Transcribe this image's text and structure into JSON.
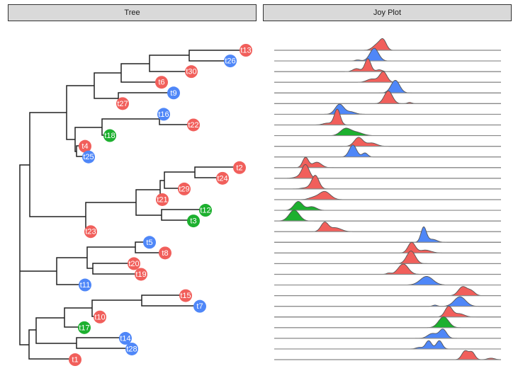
{
  "chart_data": [
    {
      "type": "tree",
      "title": "Tree",
      "tips": [
        {
          "label": "t13",
          "group": "red"
        },
        {
          "label": "t26",
          "group": "blue"
        },
        {
          "label": "t30",
          "group": "red"
        },
        {
          "label": "t6",
          "group": "red"
        },
        {
          "label": "t9",
          "group": "blue"
        },
        {
          "label": "t27",
          "group": "red"
        },
        {
          "label": "t16",
          "group": "blue"
        },
        {
          "label": "t22",
          "group": "red"
        },
        {
          "label": "t18",
          "group": "green"
        },
        {
          "label": "t4",
          "group": "red"
        },
        {
          "label": "t25",
          "group": "blue"
        },
        {
          "label": "t2",
          "group": "red"
        },
        {
          "label": "t24",
          "group": "red"
        },
        {
          "label": "t29",
          "group": "red"
        },
        {
          "label": "t21",
          "group": "red"
        },
        {
          "label": "t12",
          "group": "green"
        },
        {
          "label": "t3",
          "group": "green"
        },
        {
          "label": "t23",
          "group": "red"
        },
        {
          "label": "t5",
          "group": "blue"
        },
        {
          "label": "t8",
          "group": "red"
        },
        {
          "label": "t20",
          "group": "red"
        },
        {
          "label": "t19",
          "group": "red"
        },
        {
          "label": "t11",
          "group": "blue"
        },
        {
          "label": "t15",
          "group": "red"
        },
        {
          "label": "t7",
          "group": "blue"
        },
        {
          "label": "t10",
          "group": "red"
        },
        {
          "label": "t17",
          "group": "green"
        },
        {
          "label": "t14",
          "group": "blue"
        },
        {
          "label": "t28",
          "group": "blue"
        },
        {
          "label": "t1",
          "group": "red"
        }
      ]
    },
    {
      "type": "ridgeline",
      "title": "Joy Plot",
      "xlim": [
        0,
        100
      ],
      "note": "each ridge is a mixture of [center, sd, weight] components in data units",
      "ridges": [
        {
          "tip": "t13",
          "group": "red",
          "components": [
            [
              45.6,
              2.0,
              0.5
            ],
            [
              48.1,
              1.4,
              0.5
            ]
          ]
        },
        {
          "tip": "t26",
          "group": "blue",
          "components": [
            [
              44.1,
              1.9,
              1.0
            ],
            [
              36.9,
              1.2,
              0.05
            ]
          ]
        },
        {
          "tip": "t30",
          "group": "red",
          "components": [
            [
              41.3,
              1.3,
              0.7
            ],
            [
              36.3,
              1.6,
              0.2
            ],
            [
              46.3,
              1.3,
              0.1
            ]
          ]
        },
        {
          "tip": "t6",
          "group": "red",
          "components": [
            [
              48.1,
              1.6,
              0.7
            ],
            [
              43.1,
              2.2,
              0.3
            ]
          ]
        },
        {
          "tip": "t9",
          "group": "blue",
          "components": [
            [
              53.4,
              1.9,
              1.0
            ]
          ]
        },
        {
          "tip": "t27",
          "group": "red",
          "components": [
            [
              50.3,
              1.8,
              0.95
            ],
            [
              59.7,
              1.0,
              0.05
            ]
          ]
        },
        {
          "tip": "t16",
          "group": "blue",
          "components": [
            [
              28.8,
              1.9,
              0.8
            ],
            [
              33.8,
              2.0,
              0.2
            ]
          ]
        },
        {
          "tip": "t22",
          "group": "red",
          "components": [
            [
              27.8,
              1.3,
              0.85
            ],
            [
              23.5,
              2.0,
              0.15
            ]
          ]
        },
        {
          "tip": "t18",
          "group": "green",
          "components": [
            [
              31.3,
              2.2,
              0.6
            ],
            [
              36.0,
              2.8,
              0.4
            ]
          ]
        },
        {
          "tip": "t4",
          "group": "red",
          "components": [
            [
              37.2,
              1.9,
              0.7
            ],
            [
              43.0,
              2.2,
              0.3
            ]
          ]
        },
        {
          "tip": "t25",
          "group": "blue",
          "components": [
            [
              34.7,
              1.6,
              0.8
            ],
            [
              40.0,
              1.2,
              0.2
            ]
          ]
        },
        {
          "tip": "t2",
          "group": "red",
          "components": [
            [
              13.8,
              1.3,
              0.55
            ],
            [
              18.8,
              2.0,
              0.45
            ]
          ]
        },
        {
          "tip": "t24",
          "group": "red",
          "components": [
            [
              13.8,
              1.6,
              0.9
            ],
            [
              10.5,
              2.0,
              0.1
            ]
          ]
        },
        {
          "tip": "t29",
          "group": "red",
          "components": [
            [
              18.1,
              1.6,
              0.9
            ],
            [
              14.0,
              2.0,
              0.1
            ]
          ]
        },
        {
          "tip": "t21",
          "group": "red",
          "components": [
            [
              22.2,
              2.5,
              0.85
            ],
            [
              17.0,
              2.0,
              0.15
            ]
          ]
        },
        {
          "tip": "t12",
          "group": "green",
          "components": [
            [
              10.6,
              1.9,
              0.7
            ],
            [
              16.6,
              2.0,
              0.3
            ]
          ]
        },
        {
          "tip": "t3",
          "group": "green",
          "components": [
            [
              8.8,
              2.2,
              1.0
            ]
          ]
        },
        {
          "tip": "t23",
          "group": "red",
          "components": [
            [
              22.2,
              1.6,
              0.6
            ],
            [
              27.0,
              2.5,
              0.4
            ]
          ]
        },
        {
          "tip": "t5",
          "group": "blue",
          "components": [
            [
              65.9,
              1.2,
              0.75
            ],
            [
              69.7,
              2.0,
              0.25
            ]
          ]
        },
        {
          "tip": "t8",
          "group": "red",
          "components": [
            [
              60.6,
              1.6,
              0.7
            ],
            [
              66.6,
              2.5,
              0.3
            ]
          ]
        },
        {
          "tip": "t20",
          "group": "red",
          "components": [
            [
              60.3,
              1.9,
              1.0
            ]
          ]
        },
        {
          "tip": "t19",
          "group": "red",
          "components": [
            [
              56.9,
              2.2,
              0.95
            ],
            [
              50.5,
              1.0,
              0.05
            ]
          ]
        },
        {
          "tip": "t11",
          "group": "blue",
          "components": [
            [
              67.2,
              2.8,
              1.0
            ]
          ]
        },
        {
          "tip": "t15",
          "group": "red",
          "components": [
            [
              83.1,
              1.9,
              0.7
            ],
            [
              86.9,
              1.6,
              0.3
            ]
          ]
        },
        {
          "tip": "t7",
          "group": "blue",
          "components": [
            [
              81.9,
              2.5,
              1.0
            ],
            [
              70.9,
              1.0,
              0.05
            ]
          ]
        },
        {
          "tip": "t10",
          "group": "red",
          "components": [
            [
              76.9,
              1.6,
              0.7
            ],
            [
              81.6,
              2.2,
              0.3
            ]
          ]
        },
        {
          "tip": "t17",
          "group": "green",
          "components": [
            [
              74.7,
              2.2,
              1.0
            ]
          ]
        },
        {
          "tip": "t14",
          "group": "blue",
          "components": [
            [
              74.4,
              1.6,
              0.6
            ],
            [
              69.7,
              2.0,
              0.4
            ]
          ]
        },
        {
          "tip": "t28",
          "group": "blue",
          "components": [
            [
              68.1,
              1.3,
              0.45
            ],
            [
              72.8,
              1.3,
              0.45
            ],
            [
              64.0,
              1.5,
              0.1
            ]
          ]
        },
        {
          "tip": "t1",
          "group": "red",
          "components": [
            [
              84.1,
              1.4,
              0.5
            ],
            [
              87.2,
              1.3,
              0.4
            ],
            [
              95.6,
              1.6,
              0.1
            ]
          ]
        }
      ]
    }
  ],
  "colors": {
    "red": "#F15F5B",
    "green": "#1DB02F",
    "blue": "#4F87F8"
  }
}
